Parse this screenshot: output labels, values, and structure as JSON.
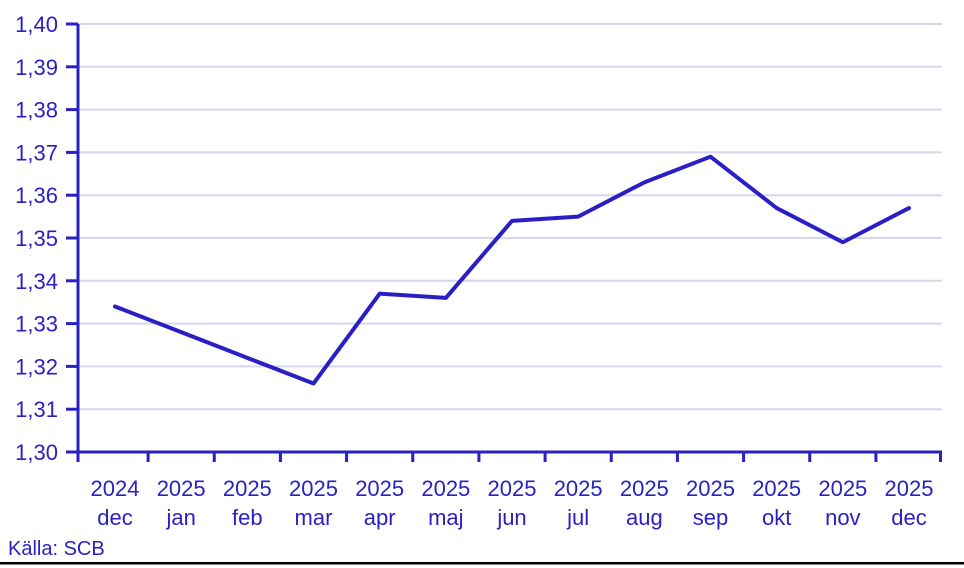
{
  "source_label": "Källa: SCB",
  "colors": {
    "ink": "#2a21c2",
    "line": "#2a1fc6",
    "grid": "#d6d6f0",
    "background": "#ffffff",
    "bottom_rule": "#000000"
  },
  "chart_data": {
    "type": "line",
    "title": "",
    "xlabel": "",
    "ylabel": "",
    "categories": [
      {
        "year": "2024",
        "month": "dec"
      },
      {
        "year": "2025",
        "month": "jan"
      },
      {
        "year": "2025",
        "month": "feb"
      },
      {
        "year": "2025",
        "month": "mar"
      },
      {
        "year": "2025",
        "month": "apr"
      },
      {
        "year": "2025",
        "month": "maj"
      },
      {
        "year": "2025",
        "month": "jun"
      },
      {
        "year": "2025",
        "month": "jul"
      },
      {
        "year": "2025",
        "month": "aug"
      },
      {
        "year": "2025",
        "month": "sep"
      },
      {
        "year": "2025",
        "month": "okt"
      },
      {
        "year": "2025",
        "month": "nov"
      },
      {
        "year": "2025",
        "month": "dec"
      }
    ],
    "values": [
      1.334,
      1.328,
      1.322,
      1.316,
      1.337,
      1.336,
      1.354,
      1.355,
      1.363,
      1.369,
      1.357,
      1.349,
      1.357
    ],
    "ylim": [
      1.3,
      1.4
    ],
    "y_step": 0.01,
    "y_tick_labels": [
      "1,30",
      "1,31",
      "1,32",
      "1,33",
      "1,34",
      "1,35",
      "1,36",
      "1,37",
      "1,38",
      "1,39",
      "1,40"
    ],
    "decimal_separator": ",",
    "grid": true,
    "legend": "none",
    "source": "Källa: SCB"
  }
}
